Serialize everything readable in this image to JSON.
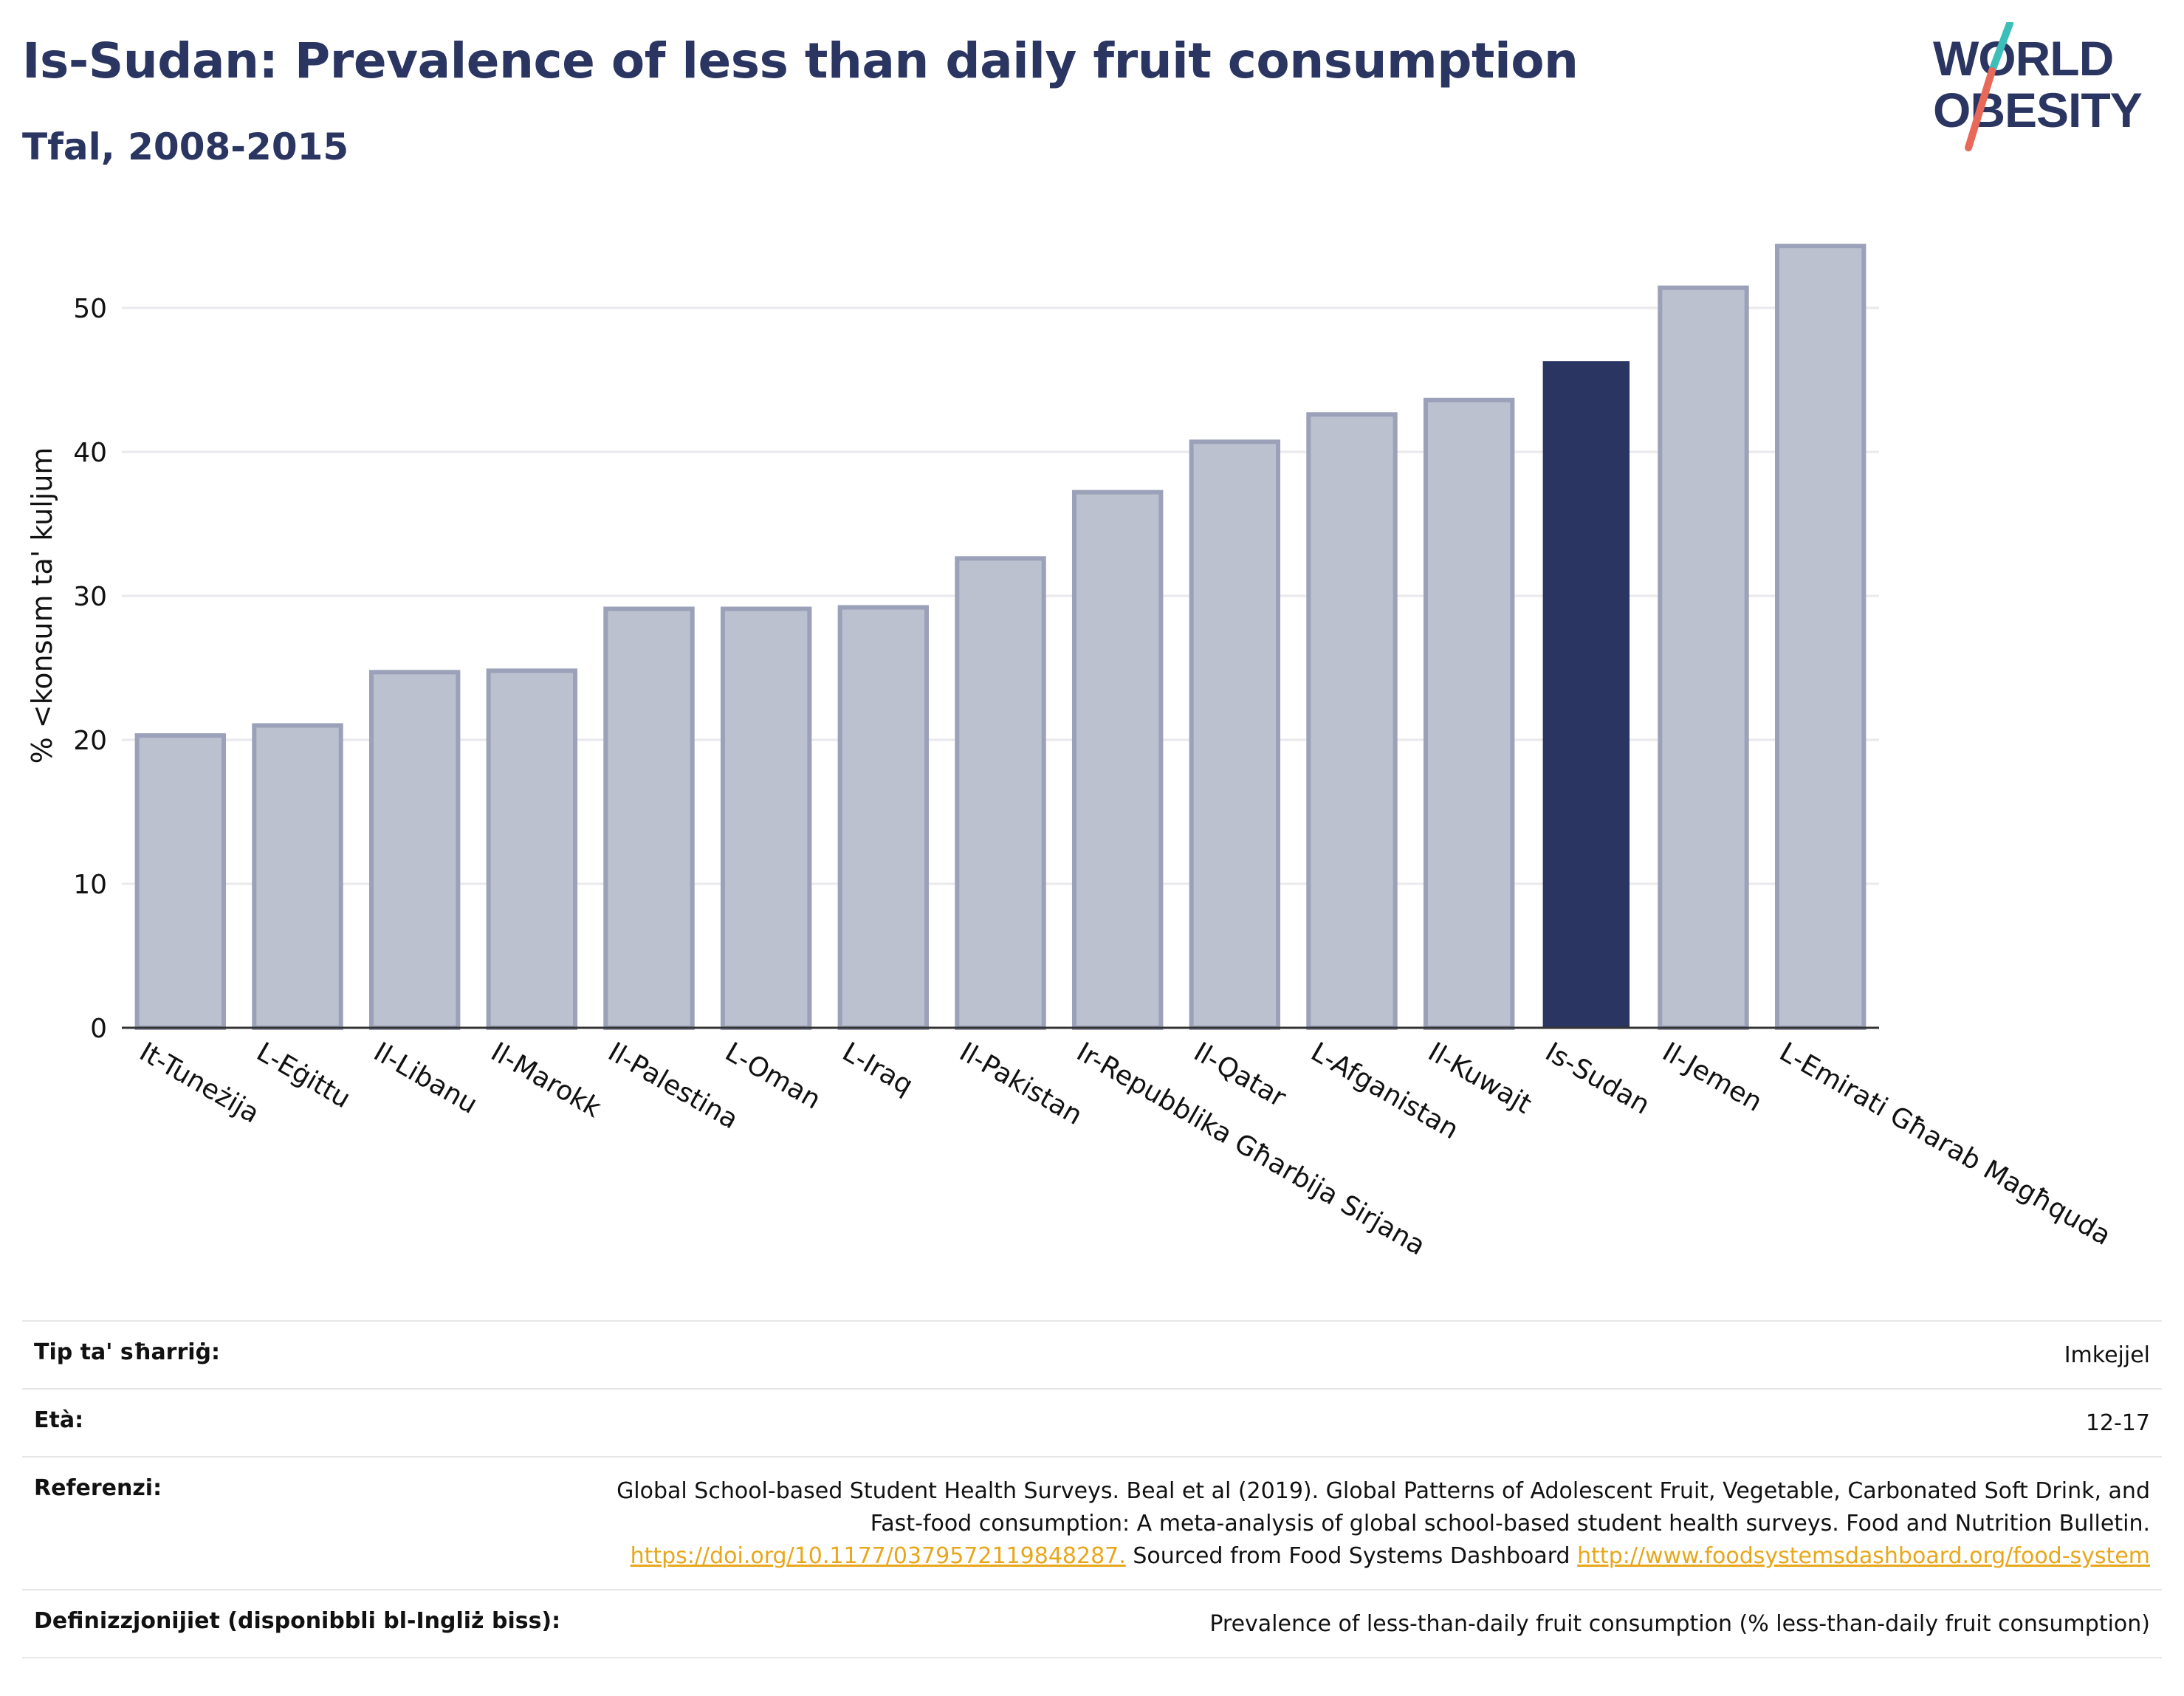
{
  "title": "Is-Sudan: Prevalence of less than daily fruit consumption",
  "subtitle": "Tfal, 2008-2015",
  "logo": {
    "line1": "WORLD",
    "line2": "OBESITY",
    "colors": {
      "text": "#2a3561",
      "slash_top": "#3bbfb8",
      "slash_bottom": "#e8685a"
    }
  },
  "colors": {
    "highlight": "#2a3561",
    "bar": "#bcc1d0",
    "bar_edge": "#9aa1b8",
    "grid": "#e9e9ee",
    "axis": "#333333"
  },
  "chart_data": {
    "type": "bar",
    "categories": [
      "It-Tuneżija",
      "L-Eġittu",
      "Il-Libanu",
      "Il-Marokk",
      "Il-Palestina",
      "L-Oman",
      "L-Iraq",
      "Il-Pakistan",
      "Ir-Repubblika Għarbija Sirjana",
      "Il-Qatar",
      "L-Afganistan",
      "Il-Kuwajt",
      "Is-Sudan",
      "Il-Jemen",
      "L-Emirati Għarab Magħquda"
    ],
    "values": [
      20.3,
      21.0,
      24.7,
      24.8,
      29.1,
      29.1,
      29.2,
      32.6,
      37.2,
      40.7,
      42.6,
      43.6,
      46.3,
      51.4,
      54.3
    ],
    "highlight": "Is-Sudan",
    "ylabel": "% <konsum ta' kuljum",
    "ylim": [
      0,
      56
    ],
    "yticks": [
      0,
      10,
      20,
      30,
      40,
      50
    ],
    "grid": true
  },
  "meta": {
    "tip_label": "Tip ta' sħarriġ:",
    "tip_value": "Imkejjel",
    "eta_label": "Età:",
    "eta_value": "12-17",
    "ref_label": "Referenzi:",
    "ref_text1": "Global School-based Student Health Surveys. Beal et al (2019). Global Patterns of Adolescent Fruit, Vegetable, Carbonated Soft Drink, and Fast-food consumption: A meta-analysis of global school-based student health surveys. Food and Nutrition Bulletin.",
    "ref_link1": "https://doi.org/10.1177/0379572119848287.",
    "ref_text2": "Sourced from Food Systems Dashboard",
    "ref_link2": "http://www.foodsystemsdashboard.org/food-system",
    "def_label": "Definizzjonijiet (disponibbli bl-Ingliż biss):",
    "def_value": "Prevalence of less-than-daily fruit consumption (% less-than-daily fruit consumption)"
  }
}
